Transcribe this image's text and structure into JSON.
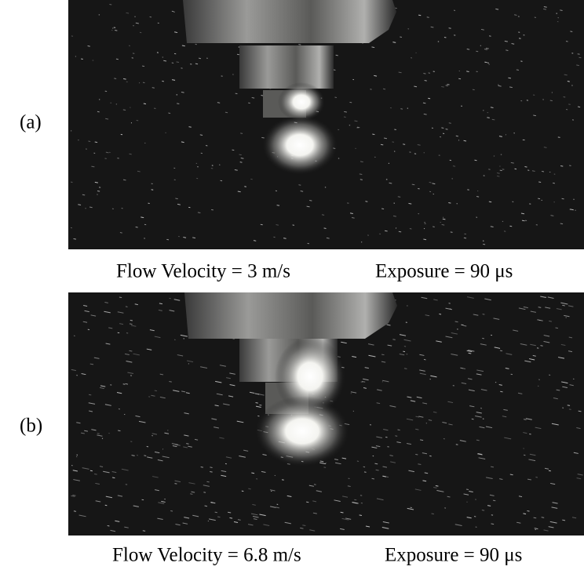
{
  "panels": [
    {
      "label": "(a)",
      "velocity": "Flow Velocity = 3 m/s",
      "exposure": "Exposure = 90 μs"
    },
    {
      "label": "(b)",
      "velocity": "Flow Velocity = 6.8 m/s",
      "exposure": "Exposure = 90 μs"
    }
  ]
}
